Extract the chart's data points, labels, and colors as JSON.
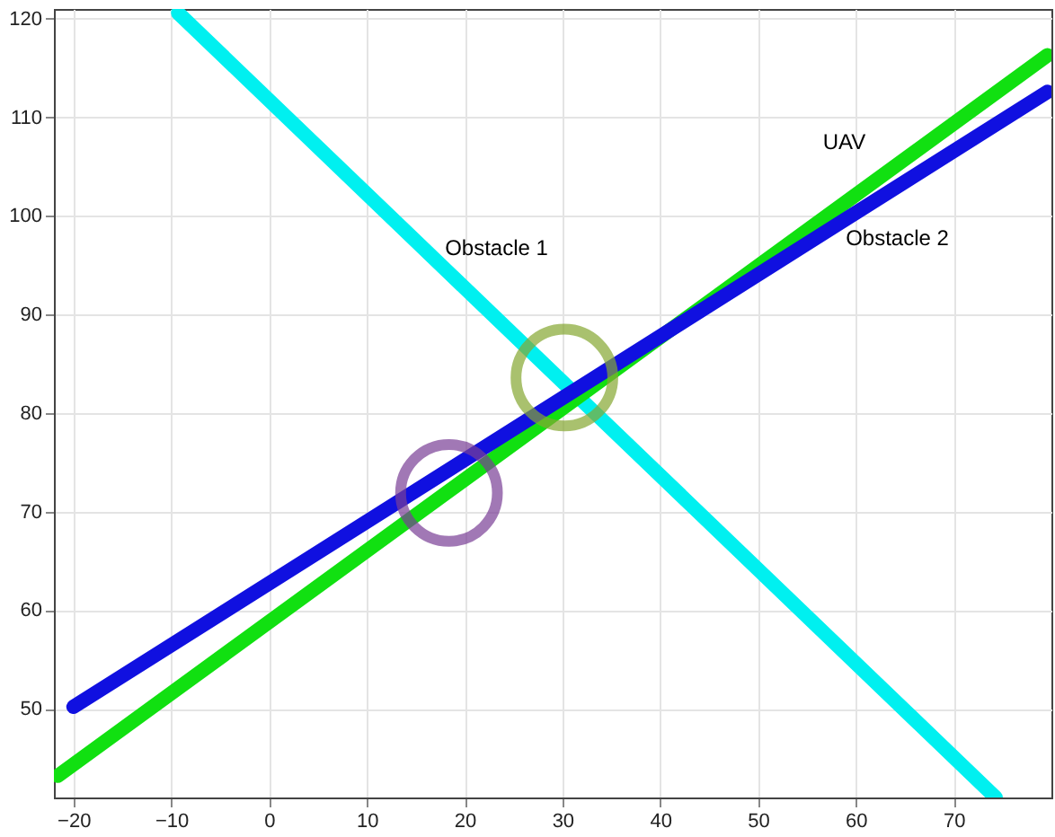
{
  "chart_data": {
    "type": "line",
    "xlim": [
      -22,
      80
    ],
    "ylim": [
      41,
      121
    ],
    "xticks": [
      -20,
      -10,
      0,
      10,
      20,
      30,
      40,
      50,
      60,
      70
    ],
    "yticks": [
      50,
      60,
      70,
      80,
      90,
      100,
      110,
      120
    ],
    "grid": true,
    "legend": false,
    "series": [
      {
        "name": "Obstacle 1",
        "color": "#00f0f0",
        "x": [
          -9.3,
          74.3
        ],
        "values": [
          120.6,
          41.0
        ]
      },
      {
        "name": "UAV",
        "color": "#11e011",
        "x": [
          -21.6,
          79.6
        ],
        "values": [
          43.2,
          116.3
        ]
      },
      {
        "name": "Obstacle 2",
        "color": "#1010e0",
        "x": [
          -20,
          79.6
        ],
        "values": [
          50.2,
          112.6
        ]
      },
      {
        "type": "scatter",
        "color": "#7a3f96",
        "x": [
          18.4
        ],
        "values": [
          71.9
        ]
      },
      {
        "type": "scatter",
        "color": "#86a832",
        "x": [
          30.2
        ],
        "values": [
          83.6
        ]
      }
    ]
  }
}
